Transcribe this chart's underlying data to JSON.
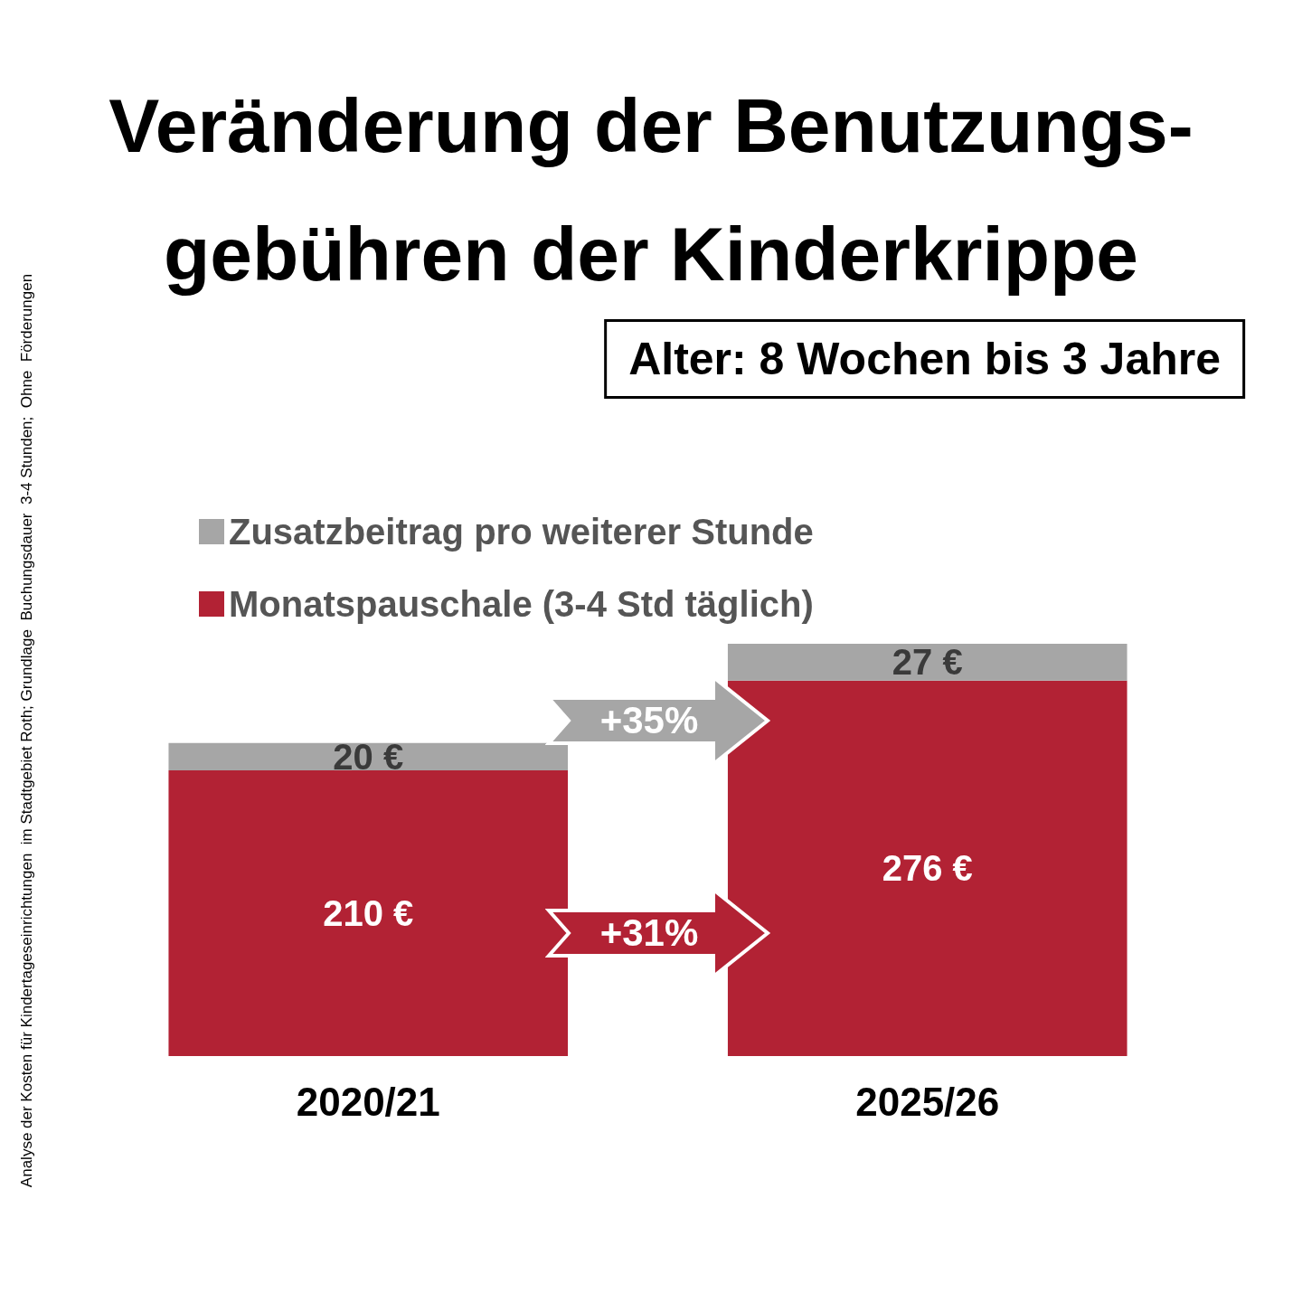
{
  "chart_data": {
    "type": "bar",
    "title": "Veränderung der Benutzungs-\ngebühren der Kinderkrippe",
    "subtitle": "Alter: 8 Wochen bis 3 Jahre",
    "categories": [
      "2020/21",
      "2025/26"
    ],
    "stacked": true,
    "legend": "top left",
    "series": [
      {
        "name": "Monatspauschale (3-4 Std täglich)",
        "color": "#b22234",
        "values": [
          210,
          276
        ],
        "value_labels": [
          "210 €",
          "276 €"
        ]
      },
      {
        "name": "Zusatzbeitrag pro weiterer Stunde",
        "color": "#a6a6a6",
        "values": [
          20,
          27
        ],
        "value_labels": [
          "20 €",
          "27 €"
        ]
      }
    ],
    "annotations": [
      "+35%",
      "+31%",
      "Analyse der Kosten für Kindertageseinrichtungen  im Stadtgebiet Roth; Grundlage  Buchungsdauer  3-4 Stunden;  Ohne  Förderungen"
    ]
  }
}
